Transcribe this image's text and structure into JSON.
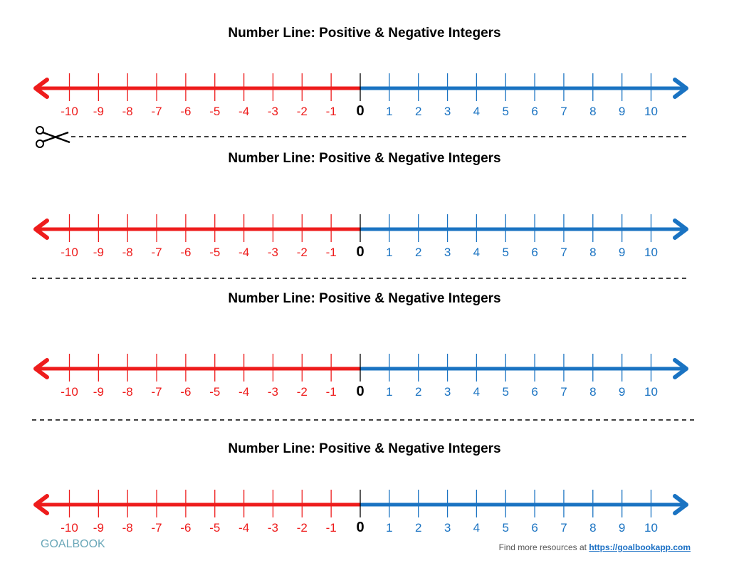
{
  "title": "Number Line: Positive & Negative Integers",
  "number_lines": [
    {
      "title": "Number Line: Positive & Negative Integers"
    },
    {
      "title": "Number Line: Positive & Negative Integers"
    },
    {
      "title": "Number Line: Positive & Negative Integers"
    },
    {
      "title": "Number Line: Positive & Negative Integers"
    }
  ],
  "range": [
    -10,
    10
  ],
  "colors": {
    "negative": "#ee1c1c",
    "positive": "#1a73c2",
    "zero": "#000000"
  },
  "cut_icon": "scissors-icon",
  "logo": "GOALBOOK",
  "footer": {
    "text": "Find more resources at",
    "link": "https://goalbookapp.com"
  }
}
